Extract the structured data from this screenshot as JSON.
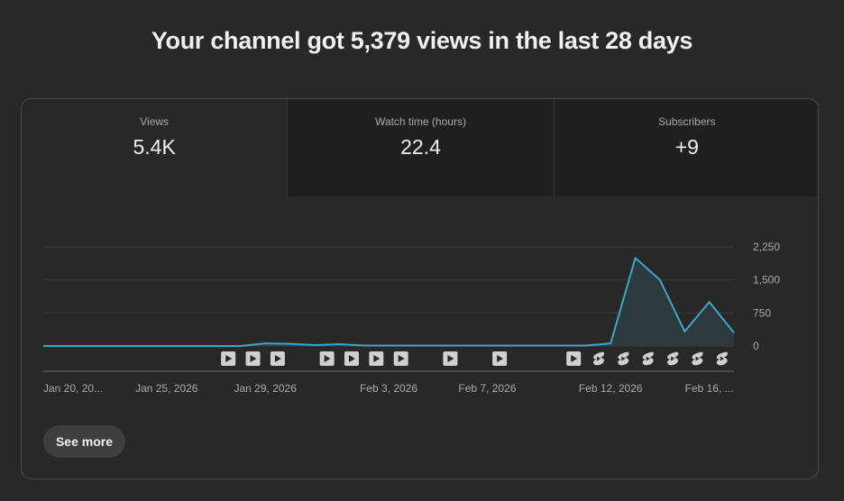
{
  "headline": "Your channel got 5,379 views in the last 28 days",
  "metrics": [
    {
      "label": "Views",
      "value": "5.4K"
    },
    {
      "label": "Watch time (hours)",
      "value": "22.4"
    },
    {
      "label": "Subscribers",
      "value": "+9"
    }
  ],
  "see_more_label": "See more",
  "colors": {
    "line": "#3ea6c8",
    "area": "#2c3b40",
    "grid": "#3a3a3a",
    "axis_text": "#aaaaaa"
  },
  "chart_data": {
    "type": "area",
    "series": [
      {
        "values": [
          15,
          15,
          15,
          15,
          15,
          15,
          15,
          15,
          15,
          15,
          15,
          15,
          15,
          15,
          15,
          15,
          15,
          15,
          15,
          15,
          60,
          60,
          60,
          60,
          60,
          60,
          60,
          60,
          60,
          60,
          60,
          60,
          60,
          60,
          60,
          60,
          60,
          60,
          60,
          60,
          60,
          60,
          60,
          60,
          60,
          60,
          60,
          60,
          60,
          60,
          60,
          60,
          60,
          60,
          60,
          60,
          60,
          60,
          60,
          60,
          60,
          60,
          60,
          60,
          60,
          60,
          60,
          60,
          60,
          60
        ]
      }
    ],
    "points": [
      [
        0,
        0
      ],
      [
        8,
        0
      ],
      [
        9,
        60
      ],
      [
        10,
        50
      ],
      [
        11,
        20
      ],
      [
        12,
        40
      ],
      [
        13,
        10
      ],
      [
        14,
        10
      ],
      [
        15,
        10
      ],
      [
        16,
        10
      ],
      [
        17,
        10
      ],
      [
        18,
        10
      ],
      [
        19,
        10
      ],
      [
        20,
        10
      ],
      [
        21,
        10
      ],
      [
        22,
        10
      ],
      [
        23,
        60
      ],
      [
        24,
        2000
      ],
      [
        25,
        1500
      ],
      [
        26,
        330
      ],
      [
        27,
        1000
      ],
      [
        28,
        300
      ]
    ],
    "x_ticks": [
      {
        "idx": 0,
        "label": "Jan 20, 20..."
      },
      {
        "idx": 5,
        "label": "Jan 25, 2026"
      },
      {
        "idx": 9,
        "label": "Jan 29, 2026"
      },
      {
        "idx": 14,
        "label": "Feb 3, 2026"
      },
      {
        "idx": 18,
        "label": "Feb 7, 2026"
      },
      {
        "idx": 23,
        "label": "Feb 12, 2026"
      },
      {
        "idx": 27,
        "label": "Feb 16, ..."
      }
    ],
    "y_ticks": [
      {
        "value": 0,
        "label": "0"
      },
      {
        "value": 750,
        "label": "750"
      },
      {
        "value": 1500,
        "label": "1,500"
      },
      {
        "value": 2250,
        "label": "2,250"
      }
    ],
    "ylim": [
      0,
      2250
    ],
    "markers": [
      {
        "idx": 7,
        "kind": "video"
      },
      {
        "idx": 8,
        "kind": "video"
      },
      {
        "idx": 9,
        "kind": "video"
      },
      {
        "idx": 11,
        "kind": "video"
      },
      {
        "idx": 12,
        "kind": "video"
      },
      {
        "idx": 13,
        "kind": "video"
      },
      {
        "idx": 14,
        "kind": "video"
      },
      {
        "idx": 16,
        "kind": "video"
      },
      {
        "idx": 18,
        "kind": "video"
      },
      {
        "idx": 21,
        "kind": "video"
      },
      {
        "idx": 22,
        "kind": "short"
      },
      {
        "idx": 23,
        "kind": "short"
      },
      {
        "idx": 24,
        "kind": "short"
      },
      {
        "idx": 25,
        "kind": "short"
      },
      {
        "idx": 26,
        "kind": "short"
      },
      {
        "idx": 27,
        "kind": "short"
      }
    ]
  }
}
